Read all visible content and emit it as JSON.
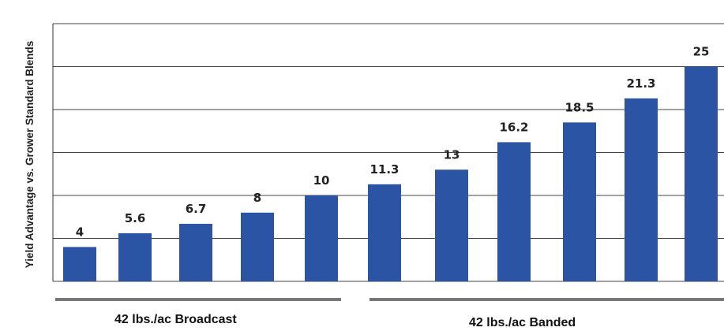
{
  "chart_data": {
    "type": "bar",
    "ylabel": "Yield Advantage vs. Grower Standard Blends",
    "ylim": [
      0,
      30
    ],
    "y_gridline_step": 5,
    "values": [
      4,
      5.6,
      6.7,
      8,
      10,
      11.3,
      13,
      16.2,
      18.5,
      21.3,
      25
    ],
    "data_labels": [
      "4",
      "5.6",
      "6.7",
      "8",
      "10",
      "11.3",
      "13",
      "16.2",
      "18.5",
      "21.3",
      "25"
    ],
    "bar_color": "#2b55a4",
    "grid": true,
    "groups": [
      {
        "label": "42 lbs./ac Broadcast",
        "bar_count": 5
      },
      {
        "label": "42 lbs./ac Banded",
        "bar_count": 6
      }
    ]
  }
}
